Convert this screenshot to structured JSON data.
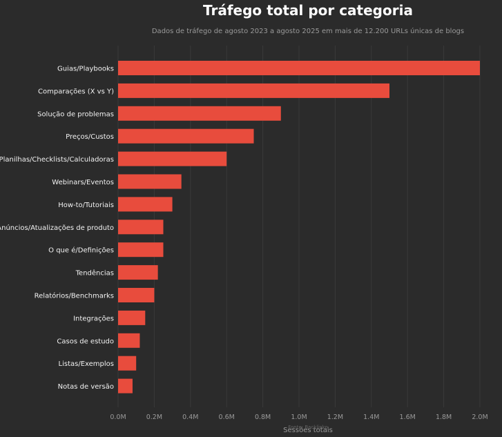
{
  "chart_data": {
    "type": "bar",
    "orientation": "horizontal",
    "title": "Tráfego total por categoria",
    "subtitle": "Dados de tráfego de agosto 2023 a agosto 2025 em mais de 12.200 URLs únicas de blogs",
    "xlabel": "Sessões totais",
    "ylabel": "",
    "source": "Fonte: Backlinko",
    "categories": [
      "Guias/Playbooks",
      "Comparações (X vs Y)",
      "Solução de problemas",
      "Preços/Custos",
      "Planilhas/Checklists/Calculadoras",
      "Webinars/Eventos",
      "How-to/Tutoriais",
      "Anúncios/Atualizações de produto",
      "O que é/Definições",
      "Tendências",
      "Relatórios/Benchmarks",
      "Integrações",
      "Casos de estudo",
      "Listas/Exemplos",
      "Notas de versão"
    ],
    "values": [
      2000000,
      1500000,
      900000,
      750000,
      600000,
      350000,
      300000,
      250000,
      250000,
      220000,
      200000,
      150000,
      120000,
      100000,
      80000
    ],
    "xlim": [
      0,
      2000000
    ],
    "x_ticks": [
      0,
      200000,
      400000,
      600000,
      800000,
      1000000,
      1200000,
      1400000,
      1600000,
      1800000,
      2000000
    ],
    "x_tick_labels": [
      "0.0M",
      "0.2M",
      "0.4M",
      "0.6M",
      "0.8M",
      "1.0M",
      "1.2M",
      "1.4M",
      "1.6M",
      "1.8M",
      "2.0M"
    ],
    "grid": true,
    "colors": {
      "background": "#2b2b2b",
      "bar": "#e84c3d",
      "title": "#ffffff",
      "muted": "#9a9a9a"
    }
  }
}
